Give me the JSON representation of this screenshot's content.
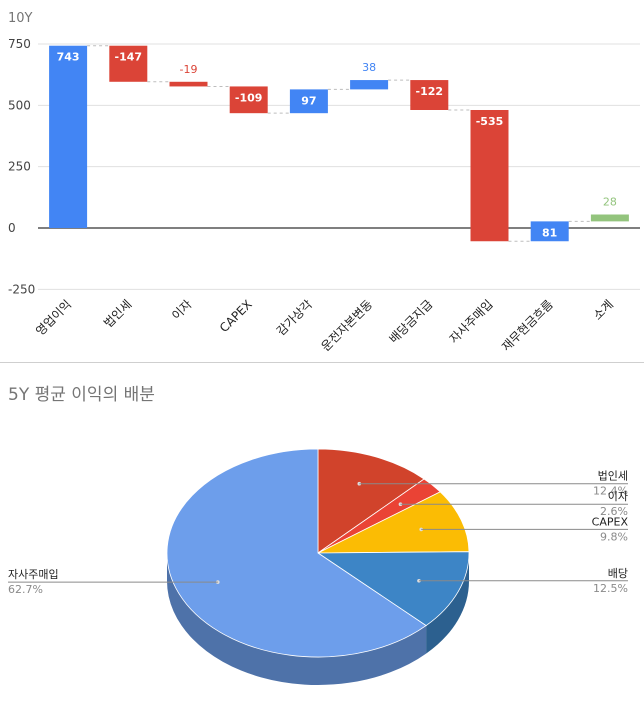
{
  "chart_data": [
    {
      "type": "waterfall",
      "title": "10Y",
      "categories": [
        "영업이익",
        "법인세",
        "이자",
        "CAPEX",
        "감가상각",
        "운전자본변동",
        "배당금지급",
        "자사주매입",
        "재무현금흐름",
        "소계"
      ],
      "values": [
        743,
        -147,
        -19,
        -109,
        97,
        38,
        -122,
        -535,
        81,
        28
      ],
      "labels": [
        "743",
        "-147",
        "-19",
        "-109",
        "97",
        "38",
        "-122",
        "-535",
        "81",
        "28"
      ],
      "label_position": [
        "inside",
        "inside",
        "above",
        "inside",
        "inside",
        "above",
        "inside",
        "inside",
        "inside",
        "above"
      ],
      "colors": [
        "#4285f4",
        "#db4437",
        "#db4437",
        "#db4437",
        "#4285f4",
        "#4285f4",
        "#db4437",
        "#db4437",
        "#4285f4",
        "#93c47d"
      ],
      "ylim": [
        -250,
        750
      ],
      "yticks": [
        -250,
        0,
        250,
        500,
        750
      ],
      "grid": true
    },
    {
      "type": "pie",
      "title": "5Y 평균 이익의 배분",
      "style": "3d",
      "slices": [
        {
          "label": "법인세",
          "value": 12.4,
          "pct": "12.4%",
          "color": "#d1432b",
          "side": "right"
        },
        {
          "label": "이자",
          "value": 2.6,
          "pct": "2.6%",
          "color": "#ea4335",
          "side": "right"
        },
        {
          "label": "CAPEX",
          "value": 9.8,
          "pct": "9.8%",
          "color": "#fbbc04",
          "side": "right"
        },
        {
          "label": "배당",
          "value": 12.5,
          "pct": "12.5%",
          "color": "#3d85c6",
          "side": "right"
        },
        {
          "label": "자사주매입",
          "value": 62.7,
          "pct": "62.7%",
          "color": "#6d9eeb",
          "side": "left"
        }
      ]
    }
  ]
}
